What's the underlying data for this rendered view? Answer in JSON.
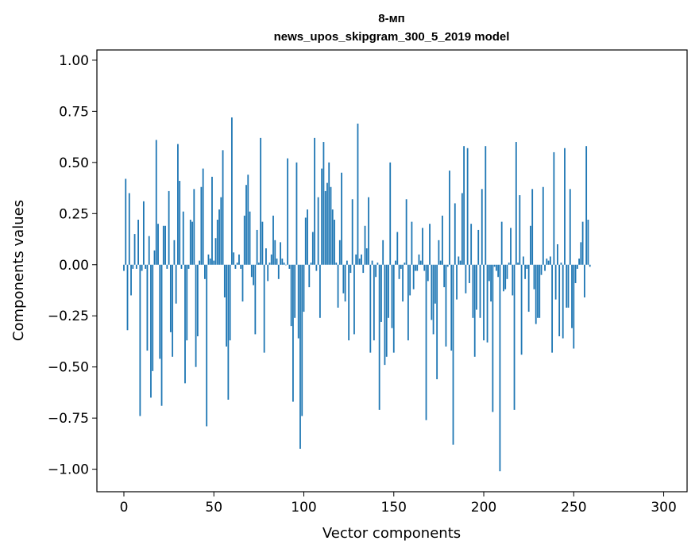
{
  "chart_data": {
    "type": "bar",
    "title_line1": "8-мп",
    "title_line2": "news_upos_skipgram_300_5_2019 model",
    "xlabel": "Vector components",
    "ylabel": "Components values",
    "xlim": [
      -15,
      313
    ],
    "ylim": [
      -1.11,
      1.05
    ],
    "xticks": [
      0,
      50,
      100,
      150,
      200,
      250,
      300
    ],
    "xtick_labels": [
      "0",
      "50",
      "100",
      "150",
      "200",
      "250",
      "300"
    ],
    "yticks": [
      1.0,
      0.75,
      0.5,
      0.25,
      0.0,
      -0.25,
      -0.5,
      -0.75,
      -1.0
    ],
    "ytick_labels": [
      "1.00",
      "0.75",
      "0.50",
      "0.25",
      "0.00",
      "−0.25",
      "−0.50",
      "−0.75",
      "−1.00"
    ],
    "bar_color": "#1f77b4",
    "grid": false,
    "values": [
      -0.03,
      0.42,
      -0.32,
      0.35,
      -0.15,
      -0.02,
      0.15,
      -0.02,
      0.22,
      -0.74,
      -0.03,
      0.31,
      -0.02,
      -0.42,
      0.14,
      -0.65,
      -0.52,
      0.07,
      0.61,
      0.2,
      -0.46,
      -0.69,
      0.19,
      0.19,
      -0.02,
      0.36,
      -0.33,
      -0.45,
      0.12,
      -0.19,
      0.59,
      0.41,
      -0.02,
      0.26,
      -0.58,
      -0.37,
      -0.02,
      0.22,
      0.21,
      0.37,
      -0.5,
      -0.35,
      0.02,
      0.38,
      0.47,
      -0.07,
      -0.79,
      0.05,
      0.03,
      0.43,
      0.02,
      0.13,
      0.22,
      0.27,
      0.33,
      0.56,
      -0.16,
      -0.4,
      -0.66,
      -0.37,
      0.72,
      0.06,
      -0.02,
      0.01,
      0.05,
      -0.02,
      -0.18,
      0.24,
      0.39,
      0.44,
      0.26,
      -0.06,
      -0.1,
      -0.34,
      0.17,
      0.01,
      0.62,
      0.21,
      -0.43,
      0.08,
      -0.08,
      0.01,
      0.05,
      0.24,
      0.12,
      0.03,
      -0.07,
      0.11,
      0.03,
      0.01,
      0.0,
      0.52,
      -0.02,
      -0.3,
      -0.67,
      -0.26,
      0.5,
      -0.36,
      -0.9,
      -0.74,
      -0.23,
      0.23,
      0.27,
      -0.11,
      0.01,
      0.16,
      0.62,
      -0.03,
      0.33,
      -0.26,
      0.47,
      0.6,
      0.36,
      0.4,
      0.5,
      0.38,
      0.27,
      0.22,
      0.01,
      -0.21,
      0.12,
      0.45,
      -0.14,
      -0.18,
      0.02,
      -0.37,
      -0.04,
      0.32,
      -0.34,
      0.05,
      0.69,
      0.03,
      0.05,
      -0.04,
      0.19,
      0.08,
      0.33,
      -0.43,
      0.02,
      -0.37,
      -0.06,
      0.01,
      -0.71,
      -0.28,
      0.12,
      -0.49,
      -0.45,
      -0.26,
      0.5,
      -0.31,
      -0.43,
      0.02,
      0.16,
      -0.07,
      -0.02,
      -0.18,
      0.01,
      0.32,
      -0.37,
      -0.15,
      0.21,
      -0.12,
      -0.03,
      -0.03,
      0.05,
      0.02,
      0.18,
      -0.03,
      -0.76,
      -0.08,
      0.2,
      -0.27,
      -0.34,
      -0.19,
      -0.56,
      0.12,
      0.02,
      0.24,
      -0.11,
      -0.4,
      -0.01,
      0.46,
      -0.42,
      -0.88,
      0.3,
      -0.17,
      0.04,
      0.02,
      0.35,
      0.58,
      -0.14,
      0.57,
      -0.09,
      0.2,
      -0.26,
      -0.45,
      -0.22,
      0.17,
      -0.26,
      0.37,
      -0.37,
      0.58,
      -0.38,
      -0.08,
      -0.18,
      -0.72,
      -0.01,
      -0.03,
      -0.06,
      -1.01,
      0.21,
      -0.13,
      -0.12,
      -0.07,
      0.01,
      0.18,
      -0.15,
      -0.71,
      0.6,
      0.01,
      0.34,
      -0.44,
      0.04,
      -0.07,
      -0.02,
      -0.23,
      0.19,
      0.37,
      -0.12,
      -0.29,
      -0.26,
      -0.26,
      -0.05,
      0.38,
      -0.03,
      0.03,
      0.02,
      0.04,
      -0.43,
      0.55,
      -0.17,
      0.1,
      -0.35,
      0.01,
      -0.36,
      0.57,
      -0.21,
      -0.21,
      0.37,
      -0.31,
      -0.41,
      -0.09,
      -0.02,
      0.03,
      0.11,
      0.21,
      -0.16,
      0.58,
      0.22,
      -0.01
    ]
  }
}
